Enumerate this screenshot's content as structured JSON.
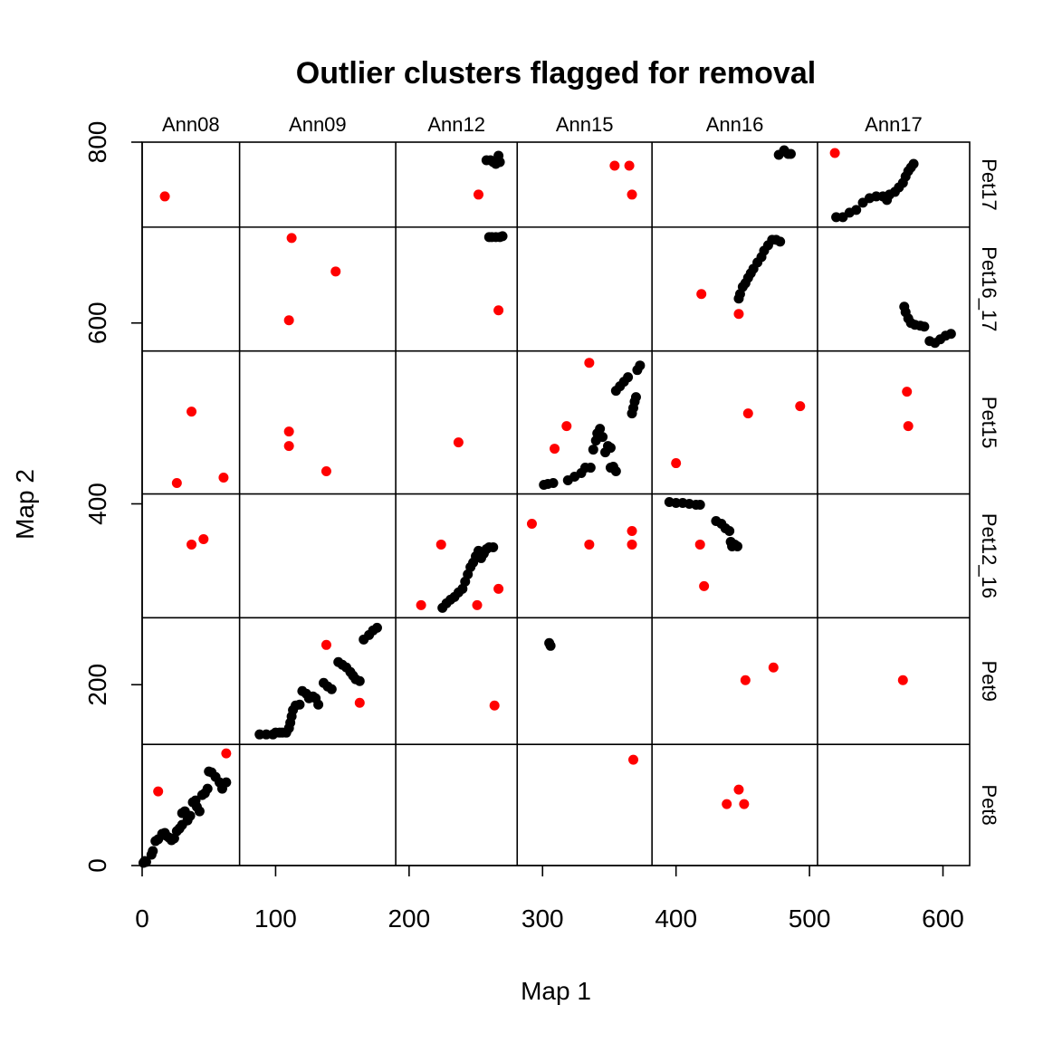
{
  "chart_data": {
    "type": "scatter",
    "title": "Outlier clusters flagged for removal",
    "xlabel": "Map 1",
    "ylabel": "Map 2",
    "xlim": [
      0,
      620
    ],
    "ylim": [
      0,
      800
    ],
    "x_ticks": [
      0,
      100,
      200,
      300,
      400,
      500,
      600
    ],
    "y_ticks": [
      0,
      200,
      400,
      600,
      800
    ],
    "x_bounds": [
      0,
      73,
      190,
      281,
      382,
      506,
      620
    ],
    "y_bounds": [
      0,
      134,
      274,
      411,
      569,
      706,
      800
    ],
    "columns": [
      "Ann08",
      "Ann09",
      "Ann12",
      "Ann15",
      "Ann16",
      "Ann17"
    ],
    "rows": [
      "Pet17",
      "Pet16_17",
      "Pet15",
      "Pet12_16",
      "Pet9",
      "Pet8"
    ],
    "colors": {
      "kept": "#000000",
      "flagged": "#ff0000"
    },
    "grid": false,
    "series": [
      {
        "values": [
          [
            1,
            3
          ],
          [
            2,
            5
          ],
          [
            3,
            4
          ],
          [
            7,
            12
          ],
          [
            8,
            16
          ],
          [
            10,
            27
          ],
          [
            12,
            29
          ],
          [
            15,
            35
          ],
          [
            17,
            36
          ],
          [
            18,
            33
          ],
          [
            20,
            31
          ],
          [
            22,
            28
          ],
          [
            24,
            30
          ],
          [
            26,
            38
          ],
          [
            28,
            41
          ],
          [
            30,
            45
          ],
          [
            30,
            58
          ],
          [
            32,
            60
          ],
          [
            34,
            50
          ],
          [
            36,
            55
          ],
          [
            38,
            70
          ],
          [
            40,
            72
          ],
          [
            41,
            65
          ],
          [
            43,
            60
          ],
          [
            45,
            78
          ],
          [
            47,
            80
          ],
          [
            49,
            85
          ],
          [
            50,
            104
          ],
          [
            52,
            103
          ],
          [
            55,
            98
          ],
          [
            58,
            92
          ],
          [
            60,
            85
          ],
          [
            63,
            92
          ],
          [
            88,
            145
          ],
          [
            93,
            145
          ],
          [
            98,
            145
          ],
          [
            100,
            147
          ],
          [
            103,
            147
          ],
          [
            105,
            147
          ],
          [
            108,
            147
          ],
          [
            110,
            152
          ],
          [
            111,
            158
          ],
          [
            112,
            165
          ],
          [
            113,
            172
          ],
          [
            115,
            177
          ],
          [
            118,
            178
          ],
          [
            120,
            193
          ],
          [
            123,
            190
          ],
          [
            125,
            185
          ],
          [
            128,
            187
          ],
          [
            130,
            185
          ],
          [
            132,
            178
          ],
          [
            136,
            202
          ],
          [
            139,
            198
          ],
          [
            142,
            195
          ],
          [
            147,
            225
          ],
          [
            150,
            222
          ],
          [
            153,
            219
          ],
          [
            156,
            214
          ],
          [
            158,
            210
          ],
          [
            160,
            206
          ],
          [
            163,
            204
          ],
          [
            166,
            250
          ],
          [
            170,
            255
          ],
          [
            173,
            260
          ],
          [
            176,
            263
          ],
          [
            225,
            285
          ],
          [
            228,
            290
          ],
          [
            231,
            294
          ],
          [
            234,
            297
          ],
          [
            237,
            302
          ],
          [
            240,
            306
          ],
          [
            242,
            314
          ],
          [
            244,
            322
          ],
          [
            246,
            330
          ],
          [
            248,
            335
          ],
          [
            250,
            342
          ],
          [
            252,
            348
          ],
          [
            254,
            340
          ],
          [
            256,
            345
          ],
          [
            258,
            350
          ],
          [
            260,
            352
          ],
          [
            263,
            352
          ],
          [
            260,
            695
          ],
          [
            262,
            695
          ],
          [
            265,
            695
          ],
          [
            268,
            695
          ],
          [
            270,
            696
          ],
          [
            258,
            780
          ],
          [
            261,
            780
          ],
          [
            263,
            778
          ],
          [
            265,
            776
          ],
          [
            267,
            785
          ],
          [
            268,
            778
          ],
          [
            301,
            421
          ],
          [
            304,
            422
          ],
          [
            308,
            423
          ],
          [
            319,
            426
          ],
          [
            324,
            430
          ],
          [
            329,
            434
          ],
          [
            332,
            440
          ],
          [
            336,
            440
          ],
          [
            338,
            460
          ],
          [
            340,
            470
          ],
          [
            341,
            478
          ],
          [
            343,
            483
          ],
          [
            345,
            474
          ],
          [
            347,
            457
          ],
          [
            349,
            464
          ],
          [
            351,
            462
          ],
          [
            353,
            441
          ],
          [
            355,
            436
          ],
          [
            351,
            440
          ],
          [
            355,
            525
          ],
          [
            358,
            530
          ],
          [
            361,
            535
          ],
          [
            364,
            540
          ],
          [
            367,
            500
          ],
          [
            368,
            506
          ],
          [
            369,
            513
          ],
          [
            370,
            518
          ],
          [
            371,
            548
          ],
          [
            373,
            553
          ],
          [
            305,
            246
          ],
          [
            306,
            243
          ],
          [
            395,
            402
          ],
          [
            400,
            401
          ],
          [
            405,
            401
          ],
          [
            410,
            400
          ],
          [
            415,
            399
          ],
          [
            418,
            399
          ],
          [
            430,
            381
          ],
          [
            434,
            378
          ],
          [
            437,
            373
          ],
          [
            440,
            370
          ],
          [
            441,
            358
          ],
          [
            442,
            353
          ],
          [
            444,
            355
          ],
          [
            446,
            353
          ],
          [
            447,
            627
          ],
          [
            448,
            632
          ],
          [
            450,
            640
          ],
          [
            452,
            644
          ],
          [
            454,
            650
          ],
          [
            456,
            655
          ],
          [
            458,
            660
          ],
          [
            461,
            667
          ],
          [
            464,
            673
          ],
          [
            466,
            680
          ],
          [
            469,
            686
          ],
          [
            472,
            692
          ],
          [
            475,
            692
          ],
          [
            478,
            690
          ],
          [
            477,
            786
          ],
          [
            481,
            791
          ],
          [
            484,
            787
          ],
          [
            486,
            787
          ],
          [
            520,
            717
          ],
          [
            525,
            717
          ],
          [
            530,
            722
          ],
          [
            535,
            725
          ],
          [
            540,
            733
          ],
          [
            545,
            738
          ],
          [
            550,
            740
          ],
          [
            555,
            740
          ],
          [
            558,
            736
          ],
          [
            560,
            742
          ],
          [
            564,
            745
          ],
          [
            567,
            750
          ],
          [
            570,
            755
          ],
          [
            572,
            762
          ],
          [
            574,
            768
          ],
          [
            576,
            772
          ],
          [
            578,
            776
          ],
          [
            571,
            618
          ],
          [
            572,
            612
          ],
          [
            574,
            605
          ],
          [
            576,
            600
          ],
          [
            579,
            598
          ],
          [
            583,
            597
          ],
          [
            586,
            596
          ],
          [
            590,
            580
          ],
          [
            594,
            578
          ],
          [
            598,
            582
          ],
          [
            602,
            586
          ],
          [
            606,
            588
          ]
        ]
      },
      {
        "values": [
          [
            17,
            740
          ],
          [
            112,
            694
          ],
          [
            145,
            657
          ],
          [
            110,
            603
          ],
          [
            37,
            502
          ],
          [
            26,
            423
          ],
          [
            61,
            429
          ],
          [
            110,
            480
          ],
          [
            110,
            464
          ],
          [
            138,
            436
          ],
          [
            237,
            468
          ],
          [
            267,
            614
          ],
          [
            252,
            742
          ],
          [
            335,
            556
          ],
          [
            318,
            486
          ],
          [
            309,
            461
          ],
          [
            354,
            774
          ],
          [
            365,
            774
          ],
          [
            367,
            742
          ],
          [
            454,
            500
          ],
          [
            493,
            508
          ],
          [
            400,
            445
          ],
          [
            419,
            632
          ],
          [
            447,
            610
          ],
          [
            519,
            788
          ],
          [
            573,
            524
          ],
          [
            574,
            486
          ],
          [
            37,
            355
          ],
          [
            46,
            361
          ],
          [
            224,
            355
          ],
          [
            209,
            288
          ],
          [
            251,
            288
          ],
          [
            267,
            306
          ],
          [
            292,
            378
          ],
          [
            335,
            355
          ],
          [
            367,
            370
          ],
          [
            367,
            355
          ],
          [
            418,
            355
          ],
          [
            421,
            309
          ],
          [
            138,
            244
          ],
          [
            163,
            180
          ],
          [
            264,
            177
          ],
          [
            452,
            205
          ],
          [
            473,
            219
          ],
          [
            570,
            205
          ],
          [
            12,
            82
          ],
          [
            63,
            124
          ],
          [
            368,
            117
          ],
          [
            447,
            84
          ],
          [
            438,
            68
          ],
          [
            451,
            68
          ]
        ]
      }
    ]
  }
}
